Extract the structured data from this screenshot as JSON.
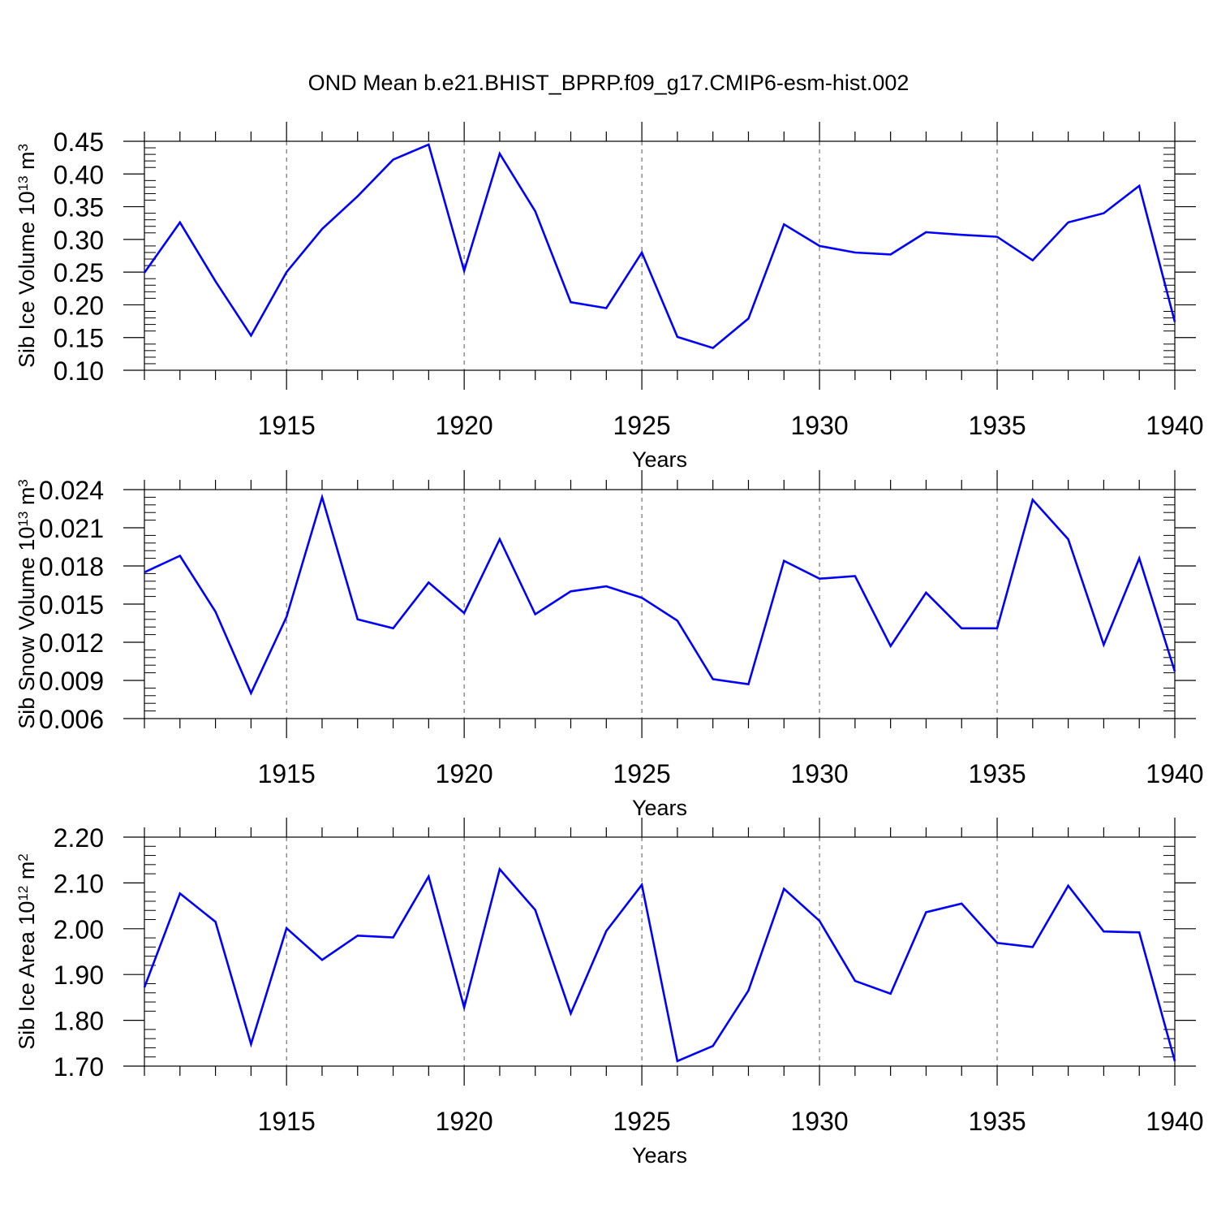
{
  "figure": {
    "title": "OND Mean b.e21.BHIST_BPRP.f09_g17.CMIP6-esm-hist.002",
    "line_color": "#0000ff"
  },
  "chart_data": [
    {
      "type": "line",
      "title": "",
      "xlabel": "Years",
      "ylabel": "Sib Ice Volume 10",
      "ylabel_exp": "13",
      "ylabel_unit": " m",
      "ylabel_unit_exp": "3",
      "xlim": [
        1911,
        1940
      ],
      "ylim": [
        0.1,
        0.45
      ],
      "xticks": [
        1915,
        1920,
        1925,
        1930,
        1935,
        1940
      ],
      "yticks": [
        "0.10",
        "0.15",
        "0.20",
        "0.25",
        "0.30",
        "0.35",
        "0.40",
        "0.45"
      ],
      "grid": "x-dashed",
      "x": [
        1911,
        1912,
        1913,
        1914,
        1915,
        1916,
        1917,
        1918,
        1919,
        1920,
        1921,
        1922,
        1923,
        1924,
        1925,
        1926,
        1927,
        1928,
        1929,
        1930,
        1931,
        1932,
        1933,
        1934,
        1935,
        1936,
        1937,
        1938,
        1939,
        1940
      ],
      "series": [
        {
          "values": [
            0.249,
            0.326,
            0.236,
            0.153,
            0.25,
            0.316,
            0.366,
            0.422,
            0.445,
            0.252,
            0.431,
            0.343,
            0.204,
            0.195,
            0.28,
            0.151,
            0.134,
            0.179,
            0.323,
            0.29,
            0.28,
            0.277,
            0.311,
            0.307,
            0.304,
            0.268,
            0.326,
            0.34,
            0.382,
            0.174
          ]
        }
      ]
    },
    {
      "type": "line",
      "title": "",
      "xlabel": "Years",
      "ylabel": "Sib Snow Volume 10",
      "ylabel_exp": "13",
      "ylabel_unit": " m",
      "ylabel_unit_exp": "3",
      "xlim": [
        1911,
        1940
      ],
      "ylim": [
        0.006,
        0.024
      ],
      "xticks": [
        1915,
        1920,
        1925,
        1930,
        1935,
        1940
      ],
      "yticks": [
        "0.006",
        "0.009",
        "0.012",
        "0.015",
        "0.018",
        "0.021",
        "0.024"
      ],
      "grid": "x-dashed",
      "x": [
        1911,
        1912,
        1913,
        1914,
        1915,
        1916,
        1917,
        1918,
        1919,
        1920,
        1921,
        1922,
        1923,
        1924,
        1925,
        1926,
        1927,
        1928,
        1929,
        1930,
        1931,
        1932,
        1933,
        1934,
        1935,
        1936,
        1937,
        1938,
        1939,
        1940
      ],
      "series": [
        {
          "values": [
            0.0175,
            0.0188,
            0.0144,
            0.008,
            0.014,
            0.0234,
            0.0138,
            0.0131,
            0.0167,
            0.0143,
            0.0201,
            0.0142,
            0.016,
            0.0164,
            0.0155,
            0.0137,
            0.0091,
            0.0087,
            0.0184,
            0.017,
            0.0172,
            0.0117,
            0.0159,
            0.0131,
            0.0131,
            0.0232,
            0.0201,
            0.0118,
            0.0186,
            0.0097
          ]
        }
      ]
    },
    {
      "type": "line",
      "title": "",
      "xlabel": "Years",
      "ylabel": "Sib Ice Area 10",
      "ylabel_exp": "12",
      "ylabel_unit": " m",
      "ylabel_unit_exp": "2",
      "xlim": [
        1911,
        1940
      ],
      "ylim": [
        1.7,
        2.2
      ],
      "xticks": [
        1915,
        1920,
        1925,
        1930,
        1935,
        1940
      ],
      "yticks": [
        "1.70",
        "1.80",
        "1.90",
        "2.00",
        "2.10",
        "2.20"
      ],
      "grid": "x-dashed",
      "x": [
        1911,
        1912,
        1913,
        1914,
        1915,
        1916,
        1917,
        1918,
        1919,
        1920,
        1921,
        1922,
        1923,
        1924,
        1925,
        1926,
        1927,
        1928,
        1929,
        1930,
        1931,
        1932,
        1933,
        1934,
        1935,
        1936,
        1937,
        1938,
        1939,
        1940
      ],
      "series": [
        {
          "values": [
            1.872,
            2.077,
            2.015,
            1.748,
            2.001,
            1.932,
            1.985,
            1.981,
            2.114,
            1.828,
            2.13,
            2.041,
            1.815,
            1.995,
            2.096,
            1.711,
            1.744,
            1.865,
            2.087,
            2.017,
            1.886,
            1.858,
            2.036,
            2.055,
            1.969,
            1.96,
            2.094,
            1.994,
            1.992,
            1.711
          ]
        }
      ]
    }
  ]
}
